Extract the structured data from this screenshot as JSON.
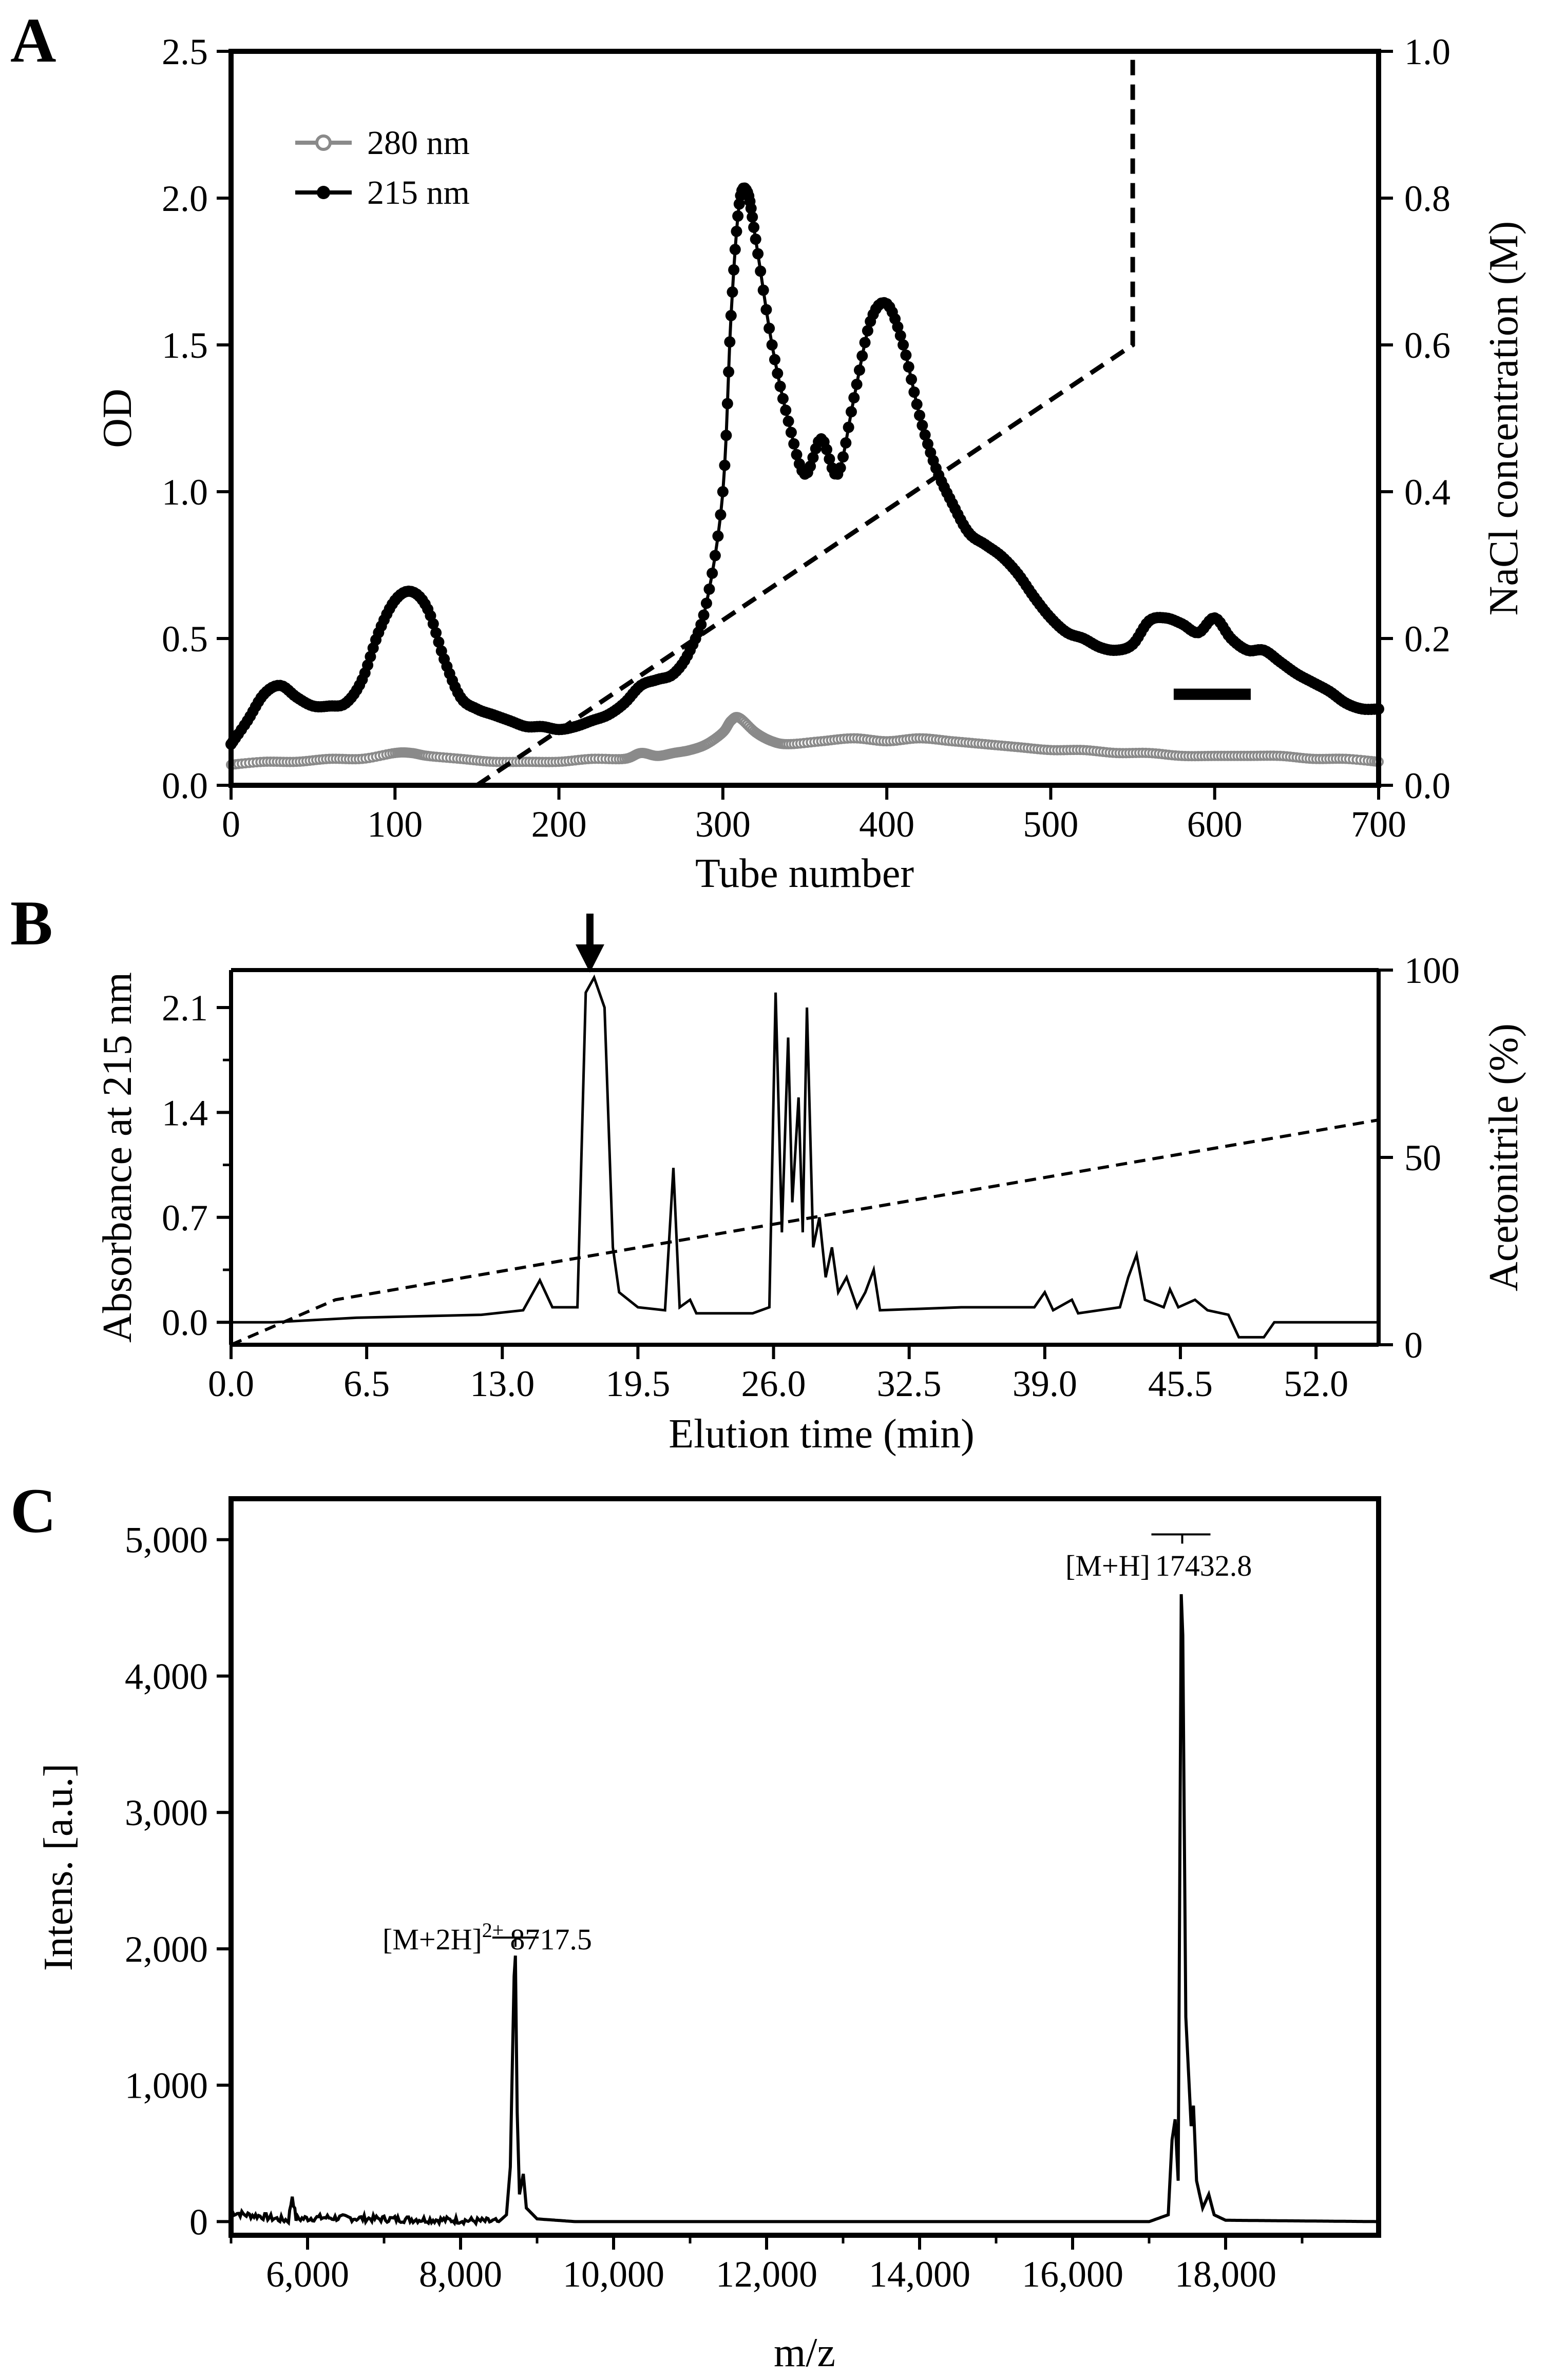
{
  "panels": {
    "a": {
      "label": "A"
    },
    "b": {
      "label": "B"
    },
    "c": {
      "label": "C"
    }
  },
  "chart_data": [
    {
      "panel": "A",
      "type": "line",
      "xlabel": "Tube number",
      "ylabel": "OD",
      "y2label": "NaCl concentration (M)",
      "xlim": [
        0,
        700
      ],
      "ylim": [
        0,
        2.5
      ],
      "y2lim": [
        0,
        1.0
      ],
      "x_ticks": [
        "0",
        "100",
        "200",
        "300",
        "400",
        "500",
        "600",
        "700"
      ],
      "y_ticks": [
        "0.0",
        "0.5",
        "1.0",
        "1.5",
        "2.0",
        "2.5"
      ],
      "y2_ticks": [
        "0.0",
        "0.2",
        "0.4",
        "0.6",
        "0.8",
        "1.0"
      ],
      "legend": [
        "280 nm",
        "215 nm"
      ],
      "legend_position": "top-left",
      "series": [
        {
          "name": "215 nm",
          "color": "#000000",
          "x": [
            0,
            10,
            20,
            30,
            40,
            50,
            60,
            70,
            80,
            90,
            100,
            110,
            120,
            130,
            140,
            150,
            160,
            170,
            180,
            190,
            200,
            210,
            220,
            230,
            240,
            250,
            260,
            270,
            280,
            290,
            300,
            305,
            310,
            315,
            320,
            330,
            340,
            350,
            360,
            370,
            380,
            390,
            400,
            410,
            420,
            430,
            440,
            450,
            460,
            470,
            480,
            490,
            500,
            510,
            520,
            530,
            540,
            550,
            560,
            570,
            580,
            590,
            600,
            610,
            620,
            630,
            640,
            650,
            660,
            670,
            680,
            690,
            700
          ],
          "y": [
            0.14,
            0.22,
            0.31,
            0.34,
            0.3,
            0.27,
            0.27,
            0.28,
            0.36,
            0.52,
            0.63,
            0.66,
            0.6,
            0.43,
            0.3,
            0.26,
            0.24,
            0.22,
            0.2,
            0.2,
            0.19,
            0.2,
            0.22,
            0.24,
            0.28,
            0.34,
            0.36,
            0.38,
            0.46,
            0.62,
            1.0,
            1.6,
            1.98,
            2.02,
            1.86,
            1.5,
            1.24,
            1.06,
            1.18,
            1.06,
            1.32,
            1.58,
            1.64,
            1.5,
            1.26,
            1.08,
            0.96,
            0.86,
            0.82,
            0.78,
            0.72,
            0.64,
            0.57,
            0.52,
            0.5,
            0.47,
            0.46,
            0.48,
            0.56,
            0.57,
            0.55,
            0.52,
            0.57,
            0.5,
            0.46,
            0.46,
            0.42,
            0.38,
            0.35,
            0.32,
            0.28,
            0.26,
            0.26
          ]
        },
        {
          "name": "280 nm",
          "color": "#8a8a8a",
          "x": [
            0,
            20,
            40,
            60,
            80,
            100,
            110,
            120,
            140,
            160,
            180,
            200,
            220,
            240,
            250,
            260,
            270,
            280,
            290,
            300,
            305,
            310,
            320,
            330,
            340,
            360,
            380,
            400,
            420,
            440,
            460,
            480,
            500,
            520,
            540,
            560,
            580,
            600,
            620,
            640,
            660,
            680,
            700
          ],
          "y": [
            0.07,
            0.08,
            0.08,
            0.09,
            0.09,
            0.11,
            0.11,
            0.1,
            0.09,
            0.08,
            0.08,
            0.08,
            0.09,
            0.09,
            0.11,
            0.1,
            0.11,
            0.12,
            0.14,
            0.18,
            0.22,
            0.23,
            0.18,
            0.15,
            0.14,
            0.15,
            0.16,
            0.15,
            0.16,
            0.15,
            0.14,
            0.13,
            0.12,
            0.12,
            0.11,
            0.11,
            0.1,
            0.1,
            0.1,
            0.1,
            0.09,
            0.09,
            0.08
          ]
        },
        {
          "name": "NaCl concentration",
          "axis": "right",
          "style": "dashed",
          "x": [
            150,
            550,
            550,
            700
          ],
          "y": [
            0.0,
            0.6,
            1.0,
            1.0
          ]
        }
      ],
      "annotation_bar": {
        "x_start": 575,
        "x_end": 622,
        "y": 0.31
      }
    },
    {
      "panel": "B",
      "type": "line",
      "xlabel": "Elution time (min)",
      "ylabel": "Absorbance at  215 nm",
      "y2label": "Acetonitrile (%)",
      "xlim": [
        0,
        55
      ],
      "ylim": [
        -0.15,
        2.35
      ],
      "y2lim": [
        0,
        100
      ],
      "x_ticks": [
        "0.0",
        "6.5",
        "13.0",
        "19.5",
        "26.0",
        "32.5",
        "39.0",
        "45.5",
        "52.0"
      ],
      "y_ticks": [
        "0.0",
        "0.7",
        "1.4",
        "2.1"
      ],
      "y2_ticks": [
        "0",
        "50",
        "100"
      ],
      "arrow_at": 17.2,
      "series": [
        {
          "name": "Absorbance at 215 nm",
          "points": [
            [
              0,
              0.0
            ],
            [
              2,
              0.0
            ],
            [
              6,
              0.03
            ],
            [
              12,
              0.05
            ],
            [
              14,
              0.08
            ],
            [
              14.8,
              0.28
            ],
            [
              15.4,
              0.1
            ],
            [
              16.6,
              0.1
            ],
            [
              17.0,
              2.2
            ],
            [
              17.4,
              2.3
            ],
            [
              17.9,
              2.1
            ],
            [
              18.3,
              0.5
            ],
            [
              18.6,
              0.2
            ],
            [
              19.5,
              0.1
            ],
            [
              20.8,
              0.08
            ],
            [
              21.2,
              1.03
            ],
            [
              21.5,
              0.1
            ],
            [
              22.0,
              0.15
            ],
            [
              22.3,
              0.06
            ],
            [
              25.0,
              0.06
            ],
            [
              25.8,
              0.1
            ],
            [
              26.1,
              2.2
            ],
            [
              26.4,
              0.6
            ],
            [
              26.7,
              1.9
            ],
            [
              26.9,
              0.8
            ],
            [
              27.2,
              1.5
            ],
            [
              27.4,
              0.6
            ],
            [
              27.6,
              2.1
            ],
            [
              27.9,
              0.5
            ],
            [
              28.2,
              0.7
            ],
            [
              28.5,
              0.3
            ],
            [
              28.8,
              0.5
            ],
            [
              29.1,
              0.2
            ],
            [
              29.5,
              0.3
            ],
            [
              30.0,
              0.1
            ],
            [
              30.4,
              0.2
            ],
            [
              30.8,
              0.35
            ],
            [
              31.1,
              0.08
            ],
            [
              35.0,
              0.1
            ],
            [
              38.5,
              0.1
            ],
            [
              39.0,
              0.2
            ],
            [
              39.4,
              0.08
            ],
            [
              40.3,
              0.15
            ],
            [
              40.6,
              0.06
            ],
            [
              42.6,
              0.1
            ],
            [
              43.0,
              0.3
            ],
            [
              43.4,
              0.45
            ],
            [
              43.8,
              0.15
            ],
            [
              44.7,
              0.1
            ],
            [
              45.0,
              0.22
            ],
            [
              45.4,
              0.1
            ],
            [
              46.2,
              0.15
            ],
            [
              46.8,
              0.08
            ],
            [
              47.8,
              0.05
            ],
            [
              48.3,
              -0.1
            ],
            [
              49.5,
              -0.1
            ],
            [
              50.0,
              0.0
            ],
            [
              55.0,
              0.0
            ]
          ]
        },
        {
          "name": "Acetonitrile",
          "axis": "right",
          "style": "dashed",
          "x": [
            0,
            5,
            55
          ],
          "y": [
            0,
            12,
            60
          ]
        }
      ]
    },
    {
      "panel": "C",
      "type": "line",
      "xlabel": "m/z",
      "ylabel": "Intens. [a.u.]",
      "xlim": [
        5000,
        20000
      ],
      "ylim": [
        -100,
        5300
      ],
      "x_ticks": [
        "6,000",
        "8,000",
        "10,000",
        "12,000",
        "14,000",
        "16,000",
        "18,000"
      ],
      "y_ticks": [
        "0",
        "1,000",
        "2,000",
        "3,000",
        "4,000",
        "5,000"
      ],
      "annotations": [
        {
          "base": "[M+2H]",
          "sup": "2+",
          "value": "8717.5",
          "x": 8717.5,
          "y": 2000
        },
        {
          "base": "[M+H]",
          "value": "17432.8",
          "x": 17432.8,
          "y": 4700
        }
      ],
      "series": [
        {
          "name": "Intensity",
          "points": [
            [
              5000,
              70
            ],
            [
              5200,
              50
            ],
            [
              5400,
              40
            ],
            [
              5600,
              20
            ],
            [
              5750,
              10
            ],
            [
              5800,
              190
            ],
            [
              5850,
              20
            ],
            [
              6200,
              30
            ],
            [
              7000,
              20
            ],
            [
              8000,
              10
            ],
            [
              8500,
              0
            ],
            [
              8600,
              50
            ],
            [
              8650,
              400
            ],
            [
              8700,
              1800
            ],
            [
              8717,
              1950
            ],
            [
              8740,
              800
            ],
            [
              8770,
              200
            ],
            [
              8820,
              350
            ],
            [
              8860,
              100
            ],
            [
              9000,
              20
            ],
            [
              9500,
              0
            ],
            [
              12000,
              0
            ],
            [
              15000,
              0
            ],
            [
              17000,
              0
            ],
            [
              17250,
              50
            ],
            [
              17300,
              600
            ],
            [
              17340,
              750
            ],
            [
              17380,
              300
            ],
            [
              17420,
              4600
            ],
            [
              17440,
              4300
            ],
            [
              17480,
              1500
            ],
            [
              17550,
              700
            ],
            [
              17580,
              850
            ],
            [
              17620,
              300
            ],
            [
              17700,
              100
            ],
            [
              17780,
              200
            ],
            [
              17850,
              50
            ],
            [
              18000,
              10
            ],
            [
              20000,
              0
            ]
          ]
        }
      ]
    }
  ]
}
